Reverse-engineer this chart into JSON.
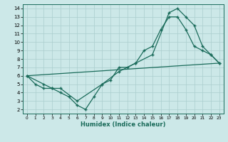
{
  "xlabel": "Humidex (Indice chaleur)",
  "background_color": "#cce8e8",
  "line_color": "#1a6b5a",
  "grid_color": "#aacece",
  "xlim": [
    -0.5,
    23.5
  ],
  "ylim": [
    1.5,
    14.5
  ],
  "xticks": [
    0,
    1,
    2,
    3,
    4,
    5,
    6,
    7,
    8,
    9,
    10,
    11,
    12,
    13,
    14,
    15,
    16,
    17,
    18,
    19,
    20,
    21,
    22,
    23
  ],
  "yticks": [
    2,
    3,
    4,
    5,
    6,
    7,
    8,
    9,
    10,
    11,
    12,
    13,
    14
  ],
  "line1_x": [
    0,
    1,
    2,
    3,
    4,
    5,
    6,
    7,
    8,
    9,
    10,
    11,
    12,
    13,
    14,
    15,
    16,
    17,
    18,
    19,
    20,
    21,
    22,
    23
  ],
  "line1_y": [
    6,
    5,
    4.5,
    4.5,
    4,
    3.5,
    2.5,
    2,
    3.5,
    5,
    5.5,
    7,
    7,
    7.5,
    9,
    9.5,
    11.5,
    13,
    13,
    11.5,
    9.5,
    9,
    8.5,
    7.5
  ],
  "line2_x": [
    0,
    2,
    3,
    4,
    6,
    9,
    11,
    13,
    15,
    17,
    18,
    19,
    20,
    21,
    22,
    23
  ],
  "line2_y": [
    6,
    5,
    4.5,
    4.5,
    3,
    5,
    6.5,
    7.5,
    8.5,
    13.5,
    14,
    13,
    12,
    9.5,
    8.5,
    7.5
  ],
  "line3_x": [
    0,
    23
  ],
  "line3_y": [
    6,
    7.5
  ]
}
